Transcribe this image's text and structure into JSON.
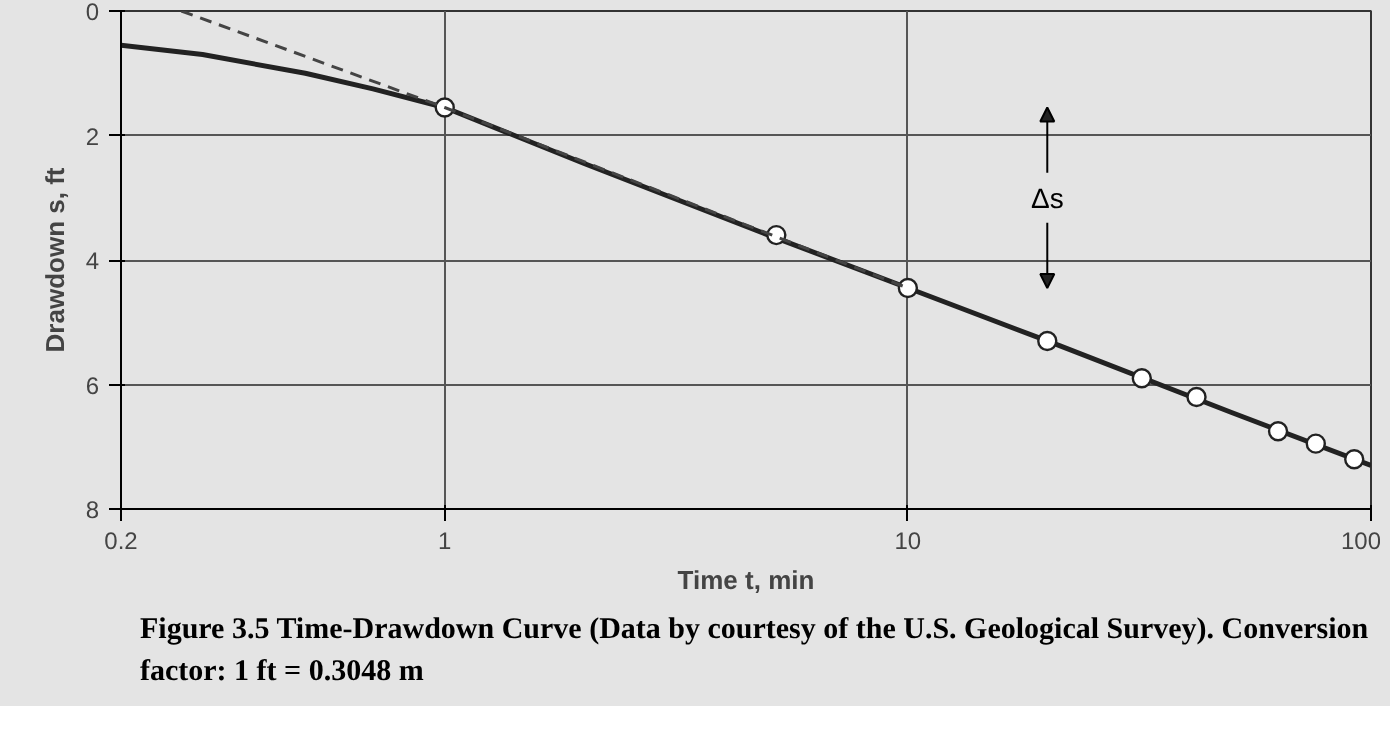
{
  "chart_data": {
    "type": "line",
    "xlabel": "Time t, min",
    "ylabel": "Drawdown s, ft",
    "log": "x",
    "xlim": [
      0.2,
      100
    ],
    "ylim": [
      8,
      0
    ],
    "xticks": [
      0.2,
      1,
      10,
      100
    ],
    "yticks": [
      0,
      2,
      4,
      6,
      8
    ],
    "grid": true,
    "series": [
      {
        "color": "#222222",
        "line_style": "solid",
        "marker": "none",
        "x": [
          0.2,
          0.3,
          0.5,
          0.7,
          1,
          2,
          5,
          10,
          20,
          50,
          100
        ],
        "values": [
          0.55,
          0.7,
          1.0,
          1.25,
          1.55,
          2.45,
          3.6,
          4.45,
          5.3,
          6.45,
          7.3
        ]
      },
      {
        "type": "scatter",
        "color": "#ffffff",
        "marker": "circle",
        "x": [
          1,
          5.2,
          10,
          20,
          32,
          42,
          63,
          76,
          92
        ],
        "values": [
          1.55,
          3.6,
          4.45,
          5.3,
          5.9,
          6.2,
          6.75,
          6.95,
          7.2
        ]
      },
      {
        "type": "line",
        "color": "#444444",
        "line_style": "dashed",
        "marker": "none",
        "x": [
          0.27,
          1,
          10
        ],
        "values": [
          0,
          1.55,
          4.45
        ]
      }
    ],
    "annotations": [
      "Δs",
      "Figure 3.5 Time-Drawdown Curve (Data by courtesy of the U.S. Geological Survey). Conversion factor: 1 ft = 0.3048 m"
    ]
  }
}
